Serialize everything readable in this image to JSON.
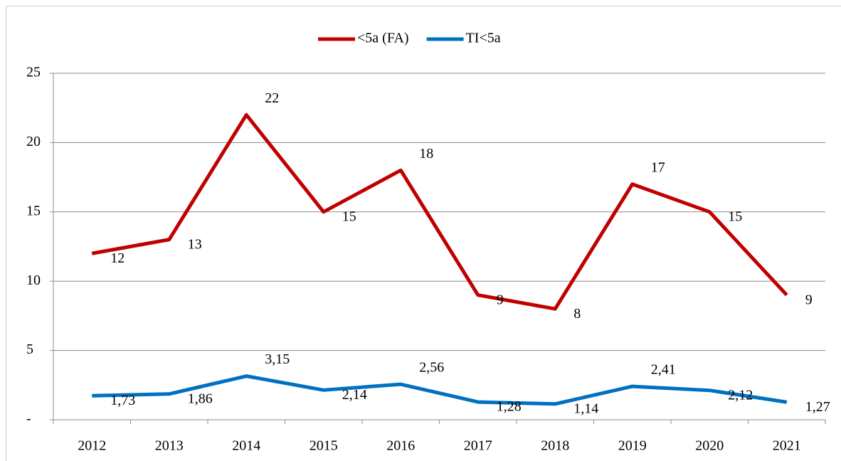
{
  "chart_data": {
    "type": "line",
    "categories": [
      "2012",
      "2013",
      "2014",
      "2015",
      "2016",
      "2017",
      "2018",
      "2019",
      "2020",
      "2021"
    ],
    "series": [
      {
        "name": "<5a (FA)",
        "color": "#c00000",
        "values": [
          12,
          13,
          22,
          15,
          18,
          9,
          8,
          17,
          15,
          9
        ]
      },
      {
        "name": "TI<5a",
        "color": "#0070c0",
        "values": [
          1.73,
          1.86,
          3.15,
          2.14,
          2.56,
          1.28,
          1.14,
          2.41,
          2.12,
          1.27
        ],
        "value_labels": [
          "1,73",
          "1,86",
          "3,15",
          "2,14",
          "2,56",
          "1,28",
          "1,14",
          "2,41",
          "2,12",
          "1,27"
        ]
      }
    ],
    "ylim": [
      0,
      25
    ],
    "yticks": [
      {
        "value": 0,
        "label": "-"
      },
      5,
      10,
      15,
      20,
      25
    ],
    "grid": true,
    "legend": "top"
  }
}
